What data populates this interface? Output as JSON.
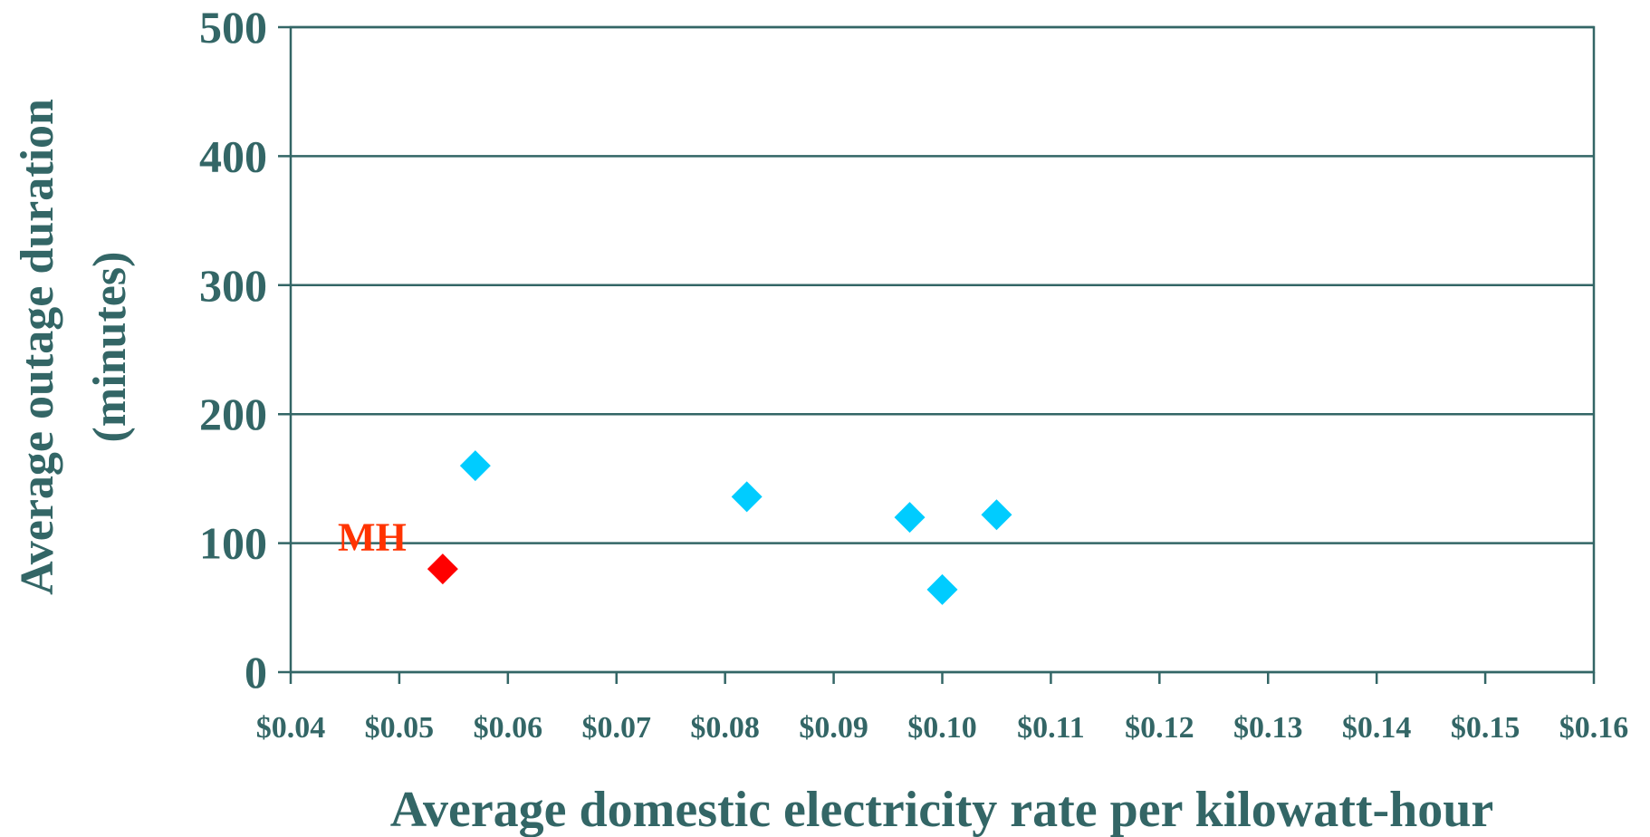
{
  "chart_data": {
    "type": "scatter",
    "title": "",
    "xlabel": "Average domestic electricity rate per kilowatt-hour",
    "ylabel_lines": [
      "Average outage duration",
      "(minutes)"
    ],
    "xlim": [
      0.04,
      0.16
    ],
    "ylim": [
      0,
      500
    ],
    "x_ticks": [
      0.04,
      0.05,
      0.06,
      0.07,
      0.08,
      0.09,
      0.1,
      0.11,
      0.12,
      0.13,
      0.14,
      0.15,
      0.16
    ],
    "x_tick_labels": [
      "$0.04",
      "$0.05",
      "$0.06",
      "$0.07",
      "$0.08",
      "$0.09",
      "$0.10",
      "$0.11",
      "$0.12",
      "$0.13",
      "$0.14",
      "$0.15",
      "$0.16"
    ],
    "y_ticks": [
      0,
      100,
      200,
      300,
      400,
      500
    ],
    "y_tick_labels": [
      "0",
      "100",
      "200",
      "300",
      "400",
      "500"
    ],
    "grid": "horizontal",
    "series": [
      {
        "color": "#00CCFF",
        "marker": "diamond",
        "points": [
          {
            "x": 0.057,
            "y": 160
          },
          {
            "x": 0.082,
            "y": 136
          },
          {
            "x": 0.097,
            "y": 120
          },
          {
            "x": 0.1,
            "y": 64
          },
          {
            "x": 0.105,
            "y": 122
          }
        ]
      },
      {
        "color": "#FF0000",
        "marker": "diamond",
        "points": [
          {
            "x": 0.054,
            "y": 80
          }
        ]
      }
    ],
    "annotations": [
      {
        "text": "MH",
        "x": 0.0475,
        "y": 107,
        "color": "#FF3300"
      }
    ],
    "text_color": "#336666",
    "axis_color": "#336666"
  }
}
